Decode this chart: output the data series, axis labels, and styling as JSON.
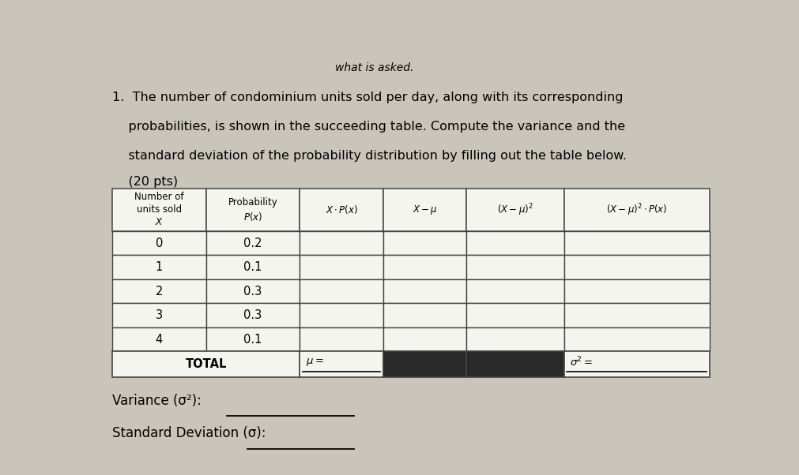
{
  "header_asked": "what is asked.",
  "title_lines": [
    "1.  The number of condominium units sold per day, along with its corresponding",
    "    probabilities, is shown in the succeeding table. Compute the variance and the",
    "    standard deviation of the probability distribution by filling out the table below.",
    "    (20 pts)"
  ],
  "rows": [
    [
      "0",
      "0.2"
    ],
    [
      "1",
      "0.1"
    ],
    [
      "2",
      "0.3"
    ],
    [
      "3",
      "0.3"
    ],
    [
      "4",
      "0.1"
    ]
  ],
  "variance_label": "Variance (σ²):",
  "std_dev_label": "Standard Deviation (σ):",
  "bg_color": "#cac5bb",
  "table_bg": "#f5f5f0",
  "dark_cell_color": "#2a2a2a",
  "text_color": "#000000",
  "line_color": "#444444"
}
